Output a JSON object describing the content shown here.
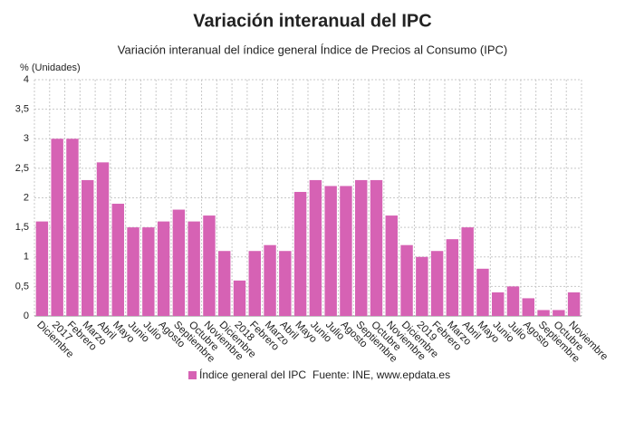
{
  "chart_data": {
    "type": "bar",
    "title": "Variación interanual del IPC",
    "subtitle": "Variación interanual del índice general Índice de Precios al Consumo (IPC)",
    "y_axis_label": "% (Unidades)",
    "categories": [
      "Diciembre",
      "2017",
      "Febrero",
      "Marzo",
      "Abril",
      "Mayo",
      "Junio",
      "Julio",
      "Agosto",
      "Septiembre",
      "Octubre",
      "Noviembre",
      "Diciembre",
      "2018",
      "Febrero",
      "Marzo",
      "Abril",
      "Mayo",
      "Junio",
      "Julio",
      "Agosto",
      "Septiembre",
      "Octubre",
      "Noviembre",
      "Diciembre",
      "2019",
      "Febrero",
      "Marzo",
      "Abril",
      "Mayo",
      "Junio",
      "Julio",
      "Agosto",
      "Septiembre",
      "Octubre",
      "Noviembre"
    ],
    "series": [
      {
        "name": "Índice general del IPC",
        "color": "#d662b4",
        "values": [
          1.6,
          3.0,
          3.0,
          2.3,
          2.6,
          1.9,
          1.5,
          1.5,
          1.6,
          1.8,
          1.6,
          1.7,
          1.1,
          0.6,
          1.1,
          1.2,
          1.1,
          2.1,
          2.3,
          2.2,
          2.2,
          2.3,
          2.3,
          1.7,
          1.2,
          1.0,
          1.1,
          1.3,
          1.5,
          0.8,
          0.4,
          0.5,
          0.3,
          0.1,
          0.1,
          0.4
        ]
      }
    ],
    "ylim": [
      0,
      4
    ],
    "yticks": [
      0,
      {
        "value": 0.5,
        "label": "0,5"
      },
      1,
      {
        "value": 1.5,
        "label": "1,5"
      },
      2,
      {
        "value": 2.5,
        "label": "2,5"
      },
      3,
      {
        "value": 3.5,
        "label": "3,5"
      },
      4
    ],
    "grid": true,
    "source": "Fuente: INE, www.epdata.es"
  }
}
